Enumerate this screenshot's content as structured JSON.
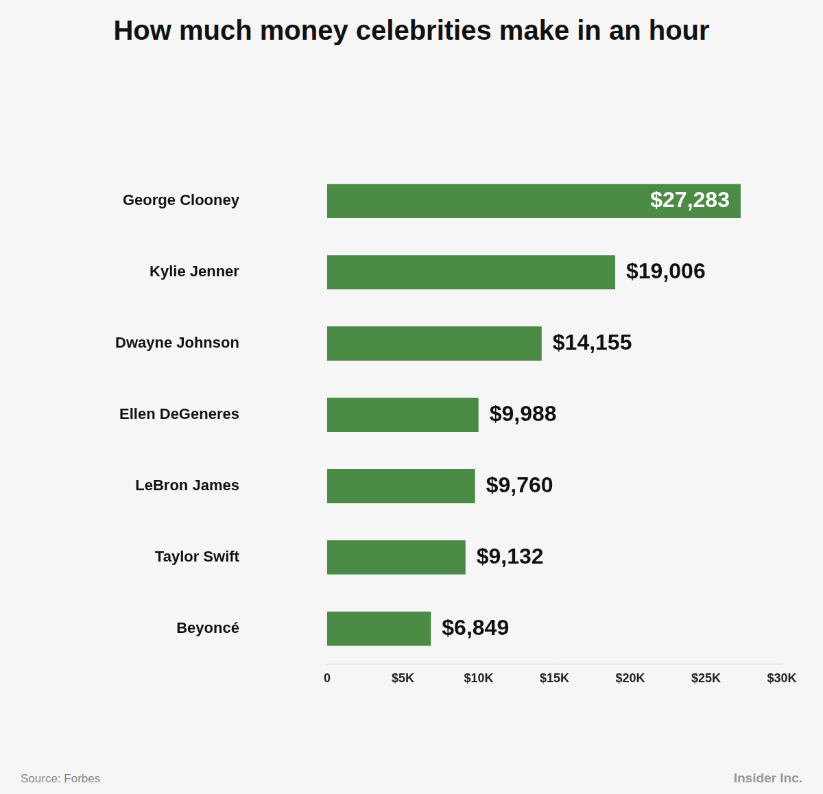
{
  "chart_data": {
    "type": "bar",
    "title": "How much money celebrities make in an hour",
    "orientation": "horizontal",
    "categories": [
      "George Clooney",
      "Kylie Jenner",
      "Dwayne Johnson",
      "Ellen DeGeneres",
      "LeBron James",
      "Taylor Swift",
      "Beyoncé"
    ],
    "values": [
      27283,
      19006,
      14155,
      9988,
      9760,
      9132,
      6849
    ],
    "value_labels": [
      "$27,283",
      "$19,006",
      "$14,155",
      "$9,988",
      "$9,760",
      "$9,132",
      "$6,849"
    ],
    "data_labels": true,
    "color": "#4b8b45",
    "xlim": [
      0,
      30000
    ],
    "xticks": [
      0,
      {
        "value": 5000,
        "label": "$5K"
      },
      {
        "value": 10000,
        "label": "$10K"
      },
      {
        "value": 15000,
        "label": "$15K"
      },
      {
        "value": 20000,
        "label": "$20K"
      },
      {
        "value": 25000,
        "label": "$25K"
      },
      {
        "value": 30000,
        "label": "$30K"
      }
    ],
    "grid": false,
    "source": "Source: Forbes",
    "credit": "Insider Inc."
  }
}
